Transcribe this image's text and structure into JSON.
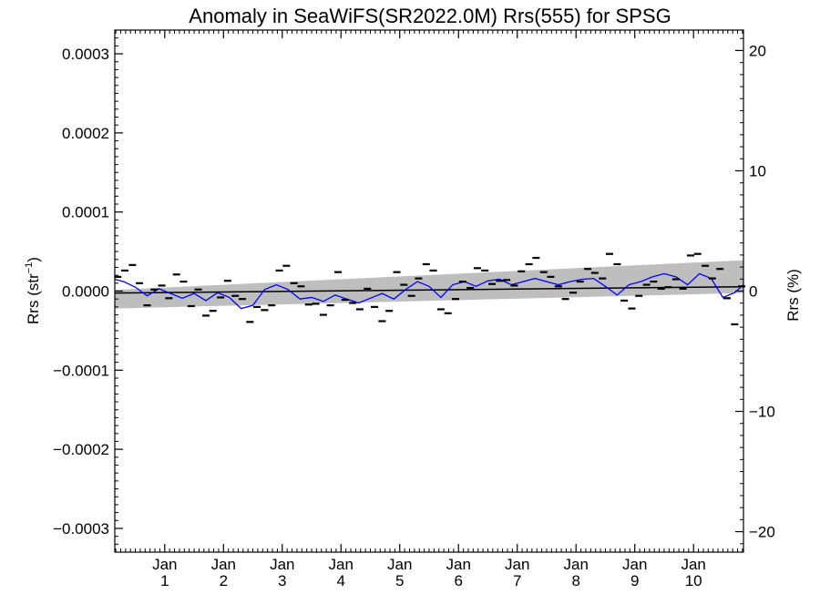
{
  "chart_data": {
    "type": "scatter",
    "title": "Anomaly in SeaWiFS(SR2022.0M) Rrs(555) for SPSG",
    "ylabel": "Rrs (str",
    "ylabel_sup": "−1",
    "ylabel_close": ")",
    "y2label": "Rrs (%)",
    "xlim": [
      0.15,
      10.85
    ],
    "ylim": [
      -0.00033,
      0.00033
    ],
    "y2lim": [
      -21.7,
      21.7
    ],
    "grid": false,
    "yticks": [
      {
        "value": 0.0003,
        "label": "0.0003"
      },
      {
        "value": 0.0002,
        "label": "0.0002"
      },
      {
        "value": 0.0001,
        "label": "0.0001"
      },
      {
        "value": 0.0,
        "label": "0.0000"
      },
      {
        "value": -0.0001,
        "label": "−0.0001"
      },
      {
        "value": -0.0002,
        "label": "−0.0002"
      },
      {
        "value": -0.0003,
        "label": "−0.0003"
      }
    ],
    "y2ticks": [
      {
        "value": 20,
        "label": "20"
      },
      {
        "value": 10,
        "label": "10"
      },
      {
        "value": 0,
        "label": "0"
      },
      {
        "value": -10,
        "label": "−10"
      },
      {
        "value": -20,
        "label": "−20"
      }
    ],
    "xticks": [
      {
        "value": 1,
        "month": "Jan",
        "year": "1"
      },
      {
        "value": 2,
        "month": "Jan",
        "year": "2"
      },
      {
        "value": 3,
        "month": "Jan",
        "year": "3"
      },
      {
        "value": 4,
        "month": "Jan",
        "year": "4"
      },
      {
        "value": 5,
        "month": "Jan",
        "year": "5"
      },
      {
        "value": 6,
        "month": "Jan",
        "year": "6"
      },
      {
        "value": 7,
        "month": "Jan",
        "year": "7"
      },
      {
        "value": 8,
        "month": "Jan",
        "year": "8"
      },
      {
        "value": 9,
        "month": "Jan",
        "year": "9"
      },
      {
        "value": 10,
        "month": "Jan",
        "year": "10"
      }
    ],
    "colors": {
      "monthly": "#000000",
      "smooth": "#0000ff",
      "trend": "#000000",
      "band": "#bebebe"
    },
    "trend": {
      "x": [
        0.15,
        10.85
      ],
      "y": [
        -2.5e-06,
        5.5e-06
      ]
    },
    "confidence_band": {
      "x": [
        0.15,
        10.85
      ],
      "upper": [
        1.5e-06,
        3.9e-05
      ],
      "lower": [
        -2.2e-05,
        -2.5e-06
      ]
    },
    "smoothed": {
      "x": [
        0.15,
        0.3,
        0.5,
        0.7,
        0.9,
        1.1,
        1.3,
        1.5,
        1.7,
        1.9,
        2.1,
        2.3,
        2.5,
        2.7,
        2.9,
        3.1,
        3.3,
        3.5,
        3.7,
        3.9,
        4.1,
        4.3,
        4.5,
        4.7,
        4.9,
        5.1,
        5.3,
        5.5,
        5.7,
        5.9,
        6.1,
        6.3,
        6.5,
        6.7,
        6.9,
        7.1,
        7.3,
        7.5,
        7.7,
        7.9,
        8.1,
        8.3,
        8.5,
        8.7,
        8.9,
        9.1,
        9.3,
        9.5,
        9.7,
        9.9,
        10.1,
        10.3,
        10.5,
        10.7,
        10.85
      ],
      "y": [
        1.5e-05,
        1.2e-05,
        5e-06,
        -6e-06,
        3e-06,
        -3e-06,
        -9e-06,
        -3e-06,
        -1.2e-05,
        -2e-06,
        -8e-06,
        -2.2e-05,
        -1.8e-05,
        2e-06,
        8e-06,
        2e-06,
        -1e-05,
        -8e-06,
        -1.3e-05,
        -5e-06,
        -1e-05,
        -1.5e-05,
        -9e-06,
        -3e-06,
        -1e-05,
        2e-06,
        1.2e-05,
        6e-06,
        -8e-06,
        8e-06,
        1.2e-05,
        6e-06,
        1.3e-05,
        1.5e-05,
        8e-06,
        1.2e-05,
        1.6e-05,
        1.2e-05,
        8e-06,
        1.2e-05,
        1.5e-05,
        1.6e-05,
        6e-06,
        -5e-06,
        8e-06,
        1.2e-05,
        1.8e-05,
        2.2e-05,
        1.8e-05,
        8e-06,
        2.2e-05,
        1.6e-05,
        -8e-06,
        -2e-06,
        8e-06
      ]
    },
    "monthly": {
      "x": [
        0.2,
        0.32,
        0.45,
        0.57,
        0.7,
        0.82,
        0.95,
        1.07,
        1.2,
        1.32,
        1.45,
        1.57,
        1.7,
        1.82,
        1.95,
        2.07,
        2.2,
        2.32,
        2.45,
        2.57,
        2.7,
        2.82,
        2.95,
        3.07,
        3.2,
        3.32,
        3.45,
        3.57,
        3.7,
        3.82,
        3.95,
        4.07,
        4.2,
        4.32,
        4.45,
        4.57,
        4.7,
        4.82,
        4.95,
        5.07,
        5.2,
        5.32,
        5.45,
        5.57,
        5.7,
        5.82,
        5.95,
        6.07,
        6.2,
        6.32,
        6.45,
        6.57,
        6.7,
        6.82,
        6.95,
        7.07,
        7.2,
        7.32,
        7.45,
        7.57,
        7.7,
        7.82,
        7.95,
        8.07,
        8.2,
        8.32,
        8.45,
        8.57,
        8.7,
        8.82,
        8.95,
        9.07,
        9.2,
        9.32,
        9.45,
        9.57,
        9.7,
        9.82,
        9.95,
        10.07,
        10.2,
        10.32,
        10.45,
        10.57,
        10.7,
        10.82
      ],
      "y": [
        1.8e-05,
        2.6e-05,
        3.3e-05,
        1e-05,
        -1.8e-05,
        2e-06,
        7e-06,
        -9e-06,
        2.1e-05,
        1.2e-05,
        -1.9e-05,
        2e-06,
        -3.1e-05,
        -2.5e-05,
        -8e-06,
        1.3e-05,
        -6e-06,
        -1e-05,
        -3.9e-05,
        -2e-05,
        -2.4e-05,
        -1.8e-05,
        2.6e-05,
        3.2e-05,
        1e-05,
        6e-06,
        -1.7e-05,
        -1.6e-05,
        -3e-05,
        -1.8e-05,
        2.4e-05,
        -1.1e-05,
        -1.5e-05,
        -2.3e-05,
        3e-06,
        -2e-05,
        -3.8e-05,
        -2.5e-05,
        2.4e-05,
        8e-06,
        -6e-06,
        1.6e-05,
        3.4e-05,
        2.6e-05,
        -2.3e-05,
        -2.8e-05,
        -1e-05,
        1.2e-05,
        4e-06,
        2.9e-05,
        2.6e-05,
        9e-06,
        1.3e-05,
        1.4e-05,
        7e-06,
        2.5e-05,
        3.4e-05,
        4.2e-05,
        2.4e-05,
        1.8e-05,
        6e-06,
        -1e-05,
        -2e-06,
        1.2e-05,
        2.8e-05,
        2.3e-05,
        1.6e-05,
        4.7e-05,
        3.4e-05,
        -1.2e-05,
        -2.2e-05,
        -6e-06,
        8e-06,
        1.2e-05,
        3e-06,
        5e-06,
        1.5e-05,
        3e-06,
        4.5e-05,
        4.7e-05,
        3.2e-05,
        1.6e-05,
        2.8e-05,
        -9e-06,
        -4.2e-05,
        6e-06
      ]
    }
  }
}
